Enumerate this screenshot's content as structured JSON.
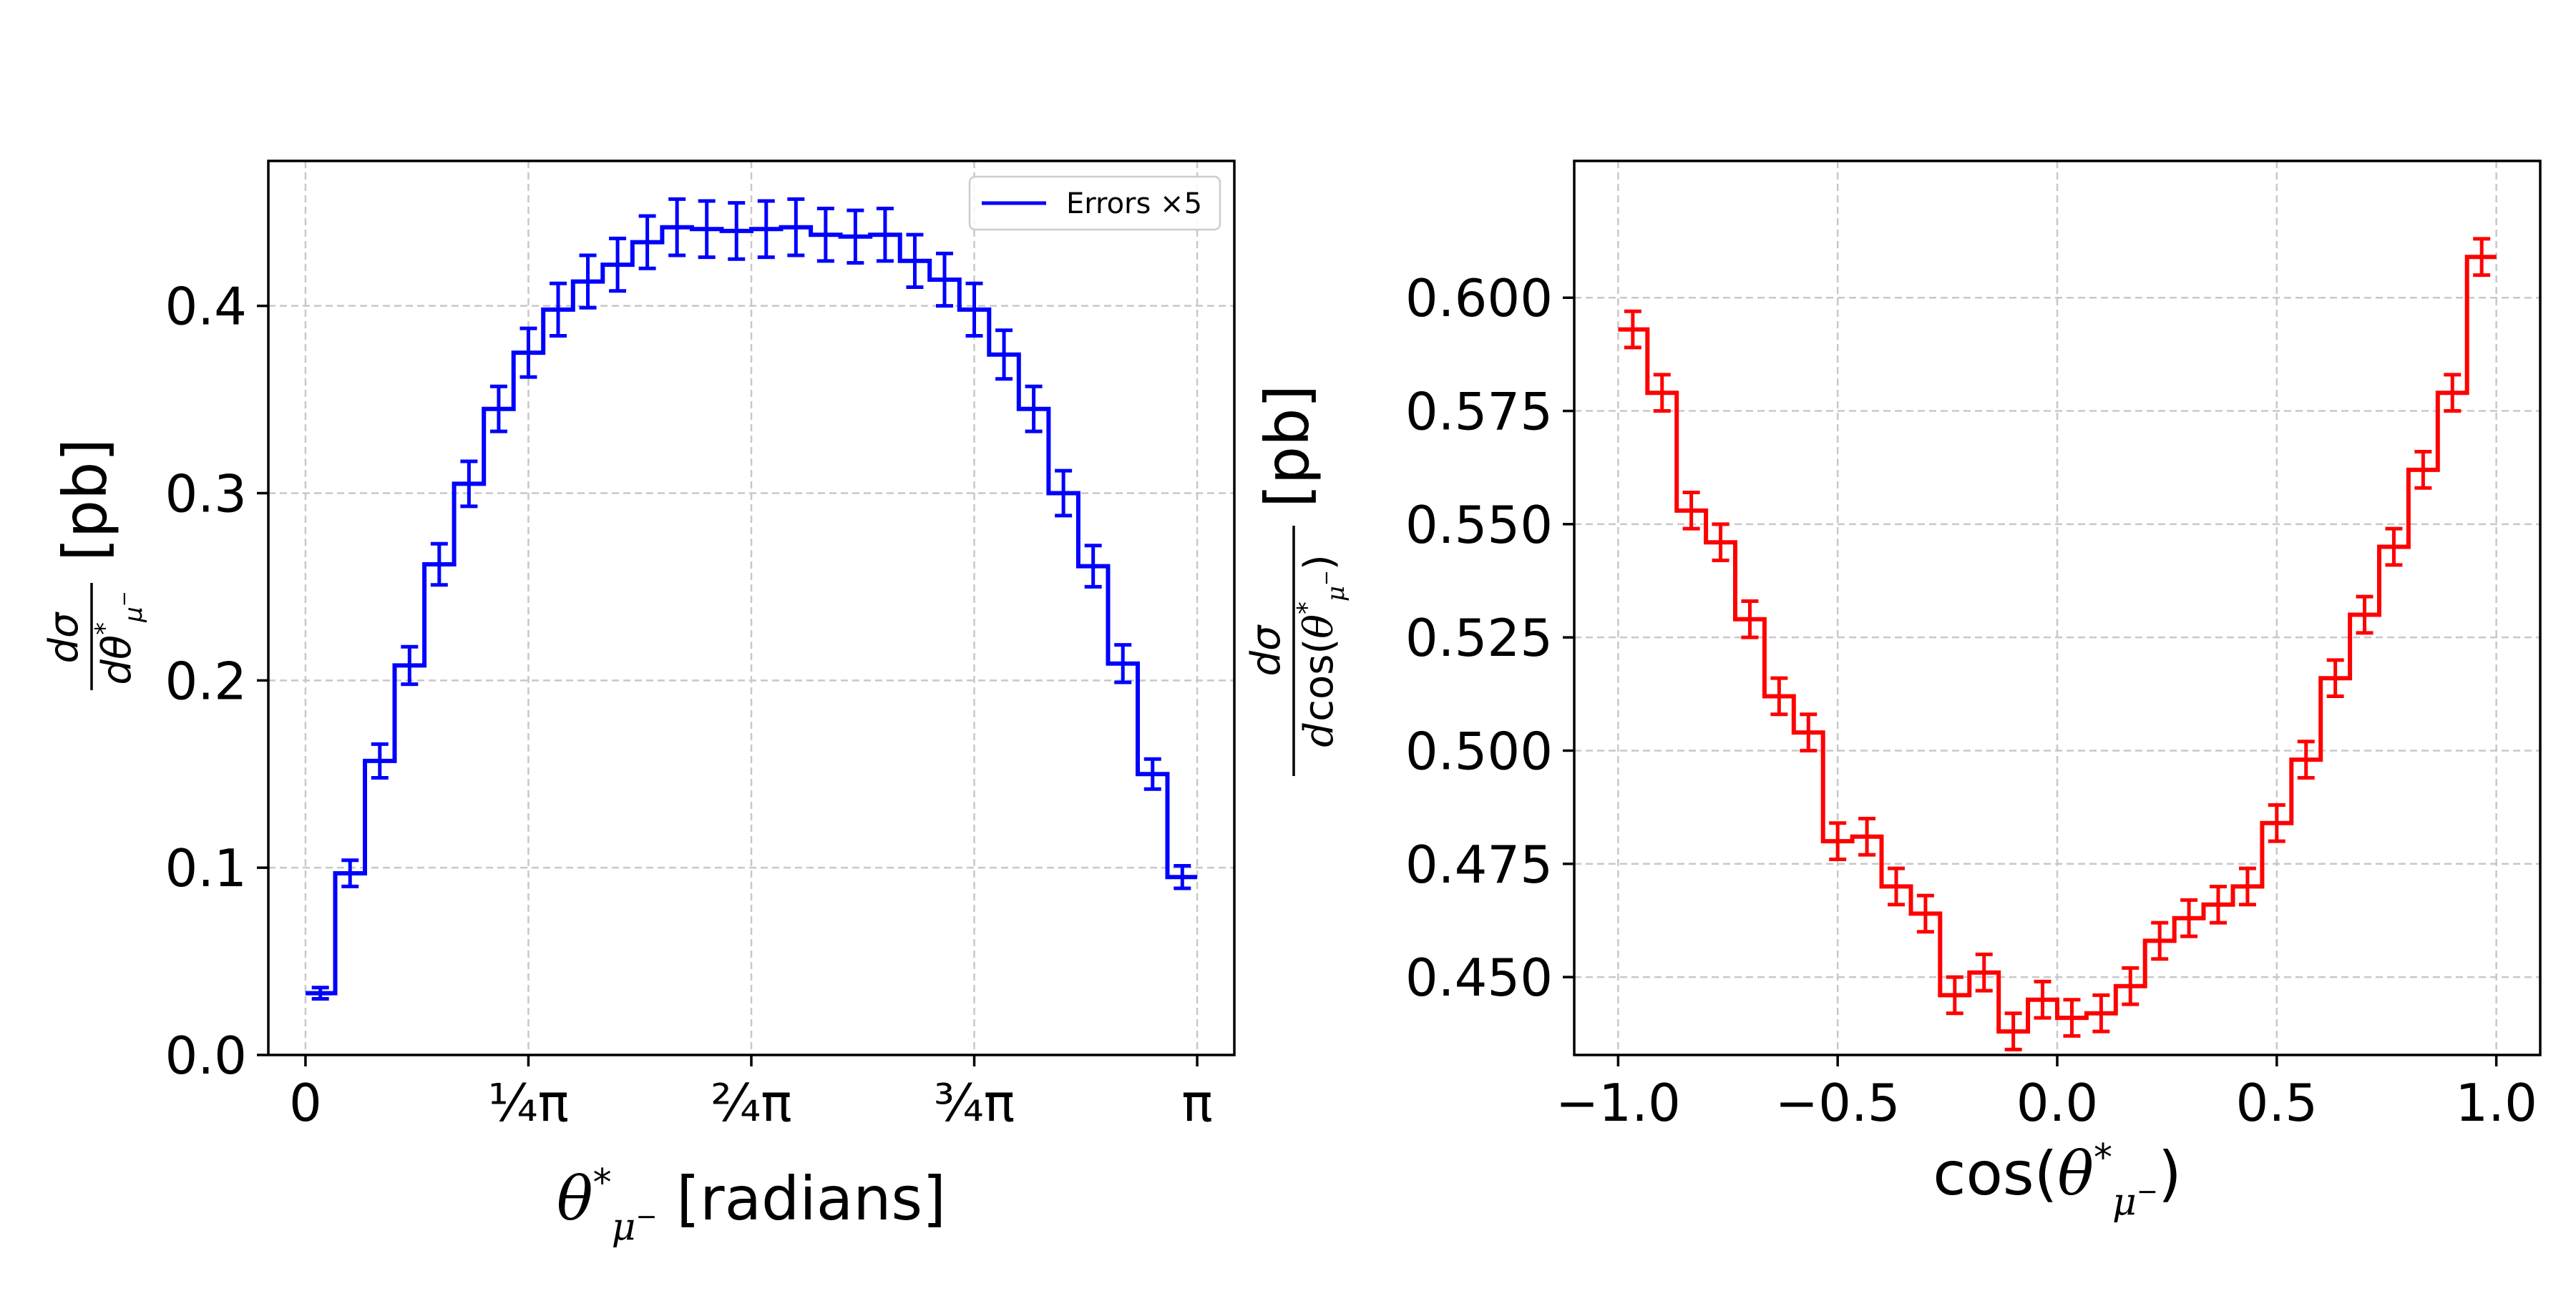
{
  "chart_data": [
    {
      "type": "line",
      "step": true,
      "color": "#0000ff",
      "title": "",
      "xlabel": "θ*μ⁻ [radians]",
      "ylabel": "dσ / dθ*μ⁻ [pb]",
      "ylabel_unit": "[pb]",
      "xlim": [
        -0.1308997,
        3.2724923
      ],
      "ylim": [
        0.0,
        0.4774
      ],
      "grid": true,
      "legend": {
        "position": "top-right",
        "entries": [
          "Errors ×5"
        ]
      },
      "x_ticks": [
        {
          "value": 0,
          "label": "0"
        },
        {
          "value": 0.7853982,
          "label": "¼π"
        },
        {
          "value": 1.5707963,
          "label": "²⁄₄π"
        },
        {
          "value": 2.3561945,
          "label": "¾π"
        },
        {
          "value": 3.1415927,
          "label": "π"
        }
      ],
      "y_ticks": [
        {
          "value": 0.0,
          "label": "0.0"
        },
        {
          "value": 0.1,
          "label": "0.1"
        },
        {
          "value": 0.2,
          "label": "0.2"
        },
        {
          "value": 0.3,
          "label": "0.3"
        },
        {
          "value": 0.4,
          "label": "0.4"
        }
      ],
      "series": [
        {
          "name": "Errors ×5",
          "bin_edges": [
            0.0,
            0.1047198,
            0.2094395,
            0.3141593,
            0.418879,
            0.5235988,
            0.6283185,
            0.7330383,
            0.837758,
            0.9424778,
            1.0471976,
            1.1519173,
            1.2566371,
            1.3613568,
            1.4660766,
            1.5707963,
            1.6755161,
            1.7802358,
            1.8849556,
            1.9896753,
            2.0943951,
            2.1991149,
            2.3038346,
            2.4085544,
            2.5132741,
            2.6179939,
            2.7227136,
            2.8274334,
            2.9321531,
            3.0368729,
            3.1415927
          ],
          "values": [
            0.033,
            0.097,
            0.157,
            0.208,
            0.262,
            0.305,
            0.345,
            0.375,
            0.398,
            0.413,
            0.422,
            0.434,
            0.442,
            0.441,
            0.44,
            0.441,
            0.442,
            0.438,
            0.437,
            0.438,
            0.424,
            0.414,
            0.398,
            0.374,
            0.345,
            0.3,
            0.261,
            0.209,
            0.15,
            0.095
          ],
          "errors": [
            0.003,
            0.007,
            0.009,
            0.01,
            0.011,
            0.012,
            0.012,
            0.013,
            0.014,
            0.014,
            0.014,
            0.014,
            0.015,
            0.015,
            0.015,
            0.015,
            0.015,
            0.014,
            0.014,
            0.014,
            0.014,
            0.014,
            0.014,
            0.013,
            0.012,
            0.012,
            0.011,
            0.01,
            0.008,
            0.006
          ]
        }
      ]
    },
    {
      "type": "line",
      "step": true,
      "color": "#ff0000",
      "title": "",
      "xlabel": "cos(θ*μ⁻)",
      "ylabel": "dσ / dcos(θ*μ⁻) [pb]",
      "ylabel_unit": "[pb]",
      "xlim": [
        -1.1,
        1.1
      ],
      "ylim": [
        0.4328,
        0.6302
      ],
      "grid": true,
      "x_ticks": [
        {
          "value": -1.0,
          "label": "−1.0"
        },
        {
          "value": -0.5,
          "label": "−0.5"
        },
        {
          "value": 0.0,
          "label": "0.0"
        },
        {
          "value": 0.5,
          "label": "0.5"
        },
        {
          "value": 1.0,
          "label": "1.0"
        }
      ],
      "y_ticks": [
        {
          "value": 0.45,
          "label": "0.450"
        },
        {
          "value": 0.475,
          "label": "0.475"
        },
        {
          "value": 0.5,
          "label": "0.500"
        },
        {
          "value": 0.525,
          "label": "0.525"
        },
        {
          "value": 0.55,
          "label": "0.550"
        },
        {
          "value": 0.575,
          "label": "0.575"
        },
        {
          "value": 0.6,
          "label": "0.600"
        }
      ],
      "series": [
        {
          "name": "",
          "bin_edges": [
            -1.0,
            -0.9333,
            -0.8667,
            -0.8,
            -0.7333,
            -0.6667,
            -0.6,
            -0.5333,
            -0.4667,
            -0.4,
            -0.3333,
            -0.2667,
            -0.2,
            -0.1333,
            -0.0667,
            0.0,
            0.0667,
            0.1333,
            0.2,
            0.2667,
            0.3333,
            0.4,
            0.4667,
            0.5333,
            0.6,
            0.6667,
            0.7333,
            0.8,
            0.8667,
            0.9333,
            1.0
          ],
          "values": [
            0.593,
            0.579,
            0.553,
            0.546,
            0.529,
            0.512,
            0.504,
            0.48,
            0.481,
            0.47,
            0.464,
            0.446,
            0.451,
            0.438,
            0.445,
            0.441,
            0.442,
            0.448,
            0.458,
            0.463,
            0.466,
            0.47,
            0.484,
            0.498,
            0.516,
            0.53,
            0.545,
            0.562,
            0.579,
            0.609
          ],
          "errors": [
            0.004,
            0.004,
            0.004,
            0.004,
            0.004,
            0.004,
            0.004,
            0.004,
            0.004,
            0.004,
            0.004,
            0.004,
            0.004,
            0.004,
            0.004,
            0.004,
            0.004,
            0.004,
            0.004,
            0.004,
            0.004,
            0.004,
            0.004,
            0.004,
            0.004,
            0.004,
            0.004,
            0.004,
            0.004,
            0.004
          ]
        }
      ]
    }
  ]
}
